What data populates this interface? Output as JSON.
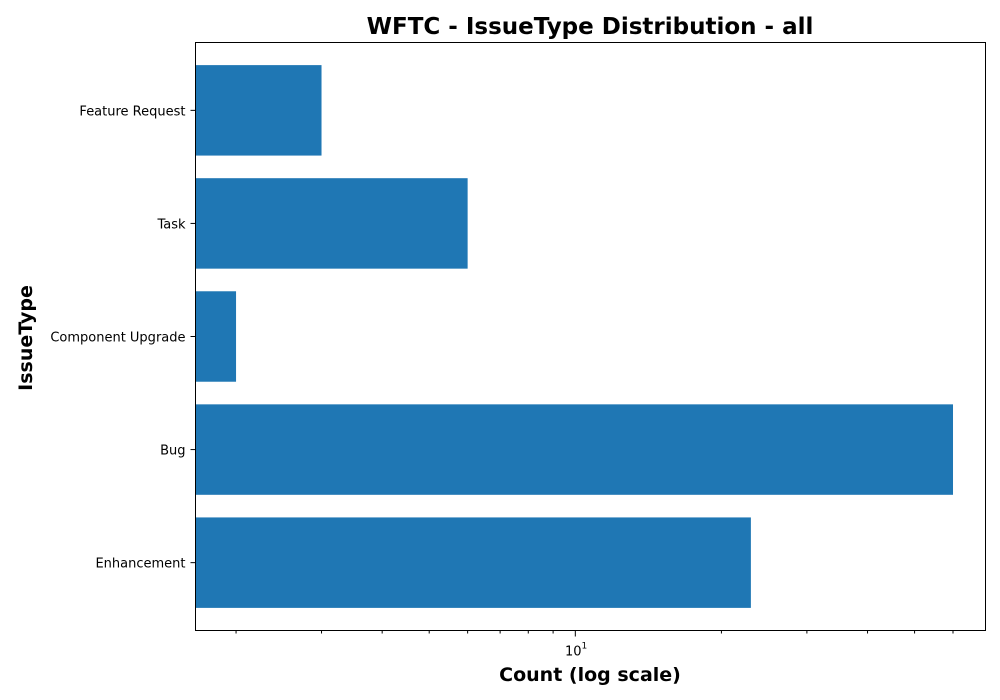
{
  "chart_data": {
    "type": "bar",
    "orientation": "horizontal",
    "title": "WFTC - IssueType Distribution - all",
    "xlabel": "Count (log scale)",
    "ylabel": "IssueType",
    "x_scale": "log",
    "xlim": [
      1.65,
      70
    ],
    "categories": [
      "Feature Request",
      "Task",
      "Component Upgrade",
      "Bug",
      "Enhancement"
    ],
    "values": [
      3,
      6,
      2,
      60,
      23
    ],
    "bar_color": "#1f77b4",
    "major_ticks": [
      10
    ],
    "major_tick_labels": [
      {
        "base": "10",
        "exp": "1"
      }
    ],
    "minor_ticks": [
      2,
      3,
      4,
      5,
      6,
      7,
      8,
      9,
      20,
      30,
      40,
      50,
      60
    ],
    "grid": false,
    "legend": "none"
  }
}
